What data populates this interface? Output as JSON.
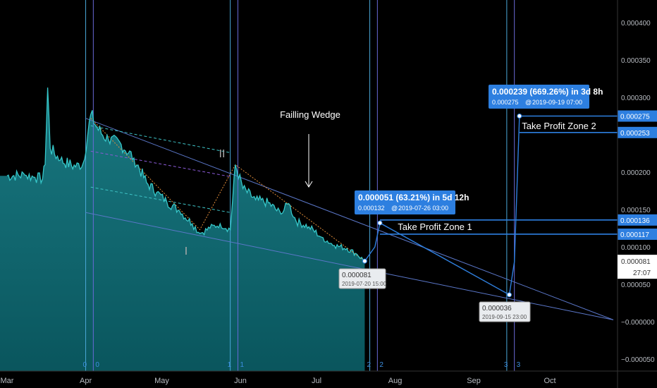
{
  "chart_data": {
    "type": "area",
    "title": "",
    "xlabel": "",
    "ylabel": "",
    "ylim": [
      -5e-05,
      0.0004
    ],
    "colors": {
      "price_line": "#36c7c9",
      "area_top": "#1d8c96",
      "area_bottom": "#0d5a63",
      "accent": "#2d7fe0",
      "fib_line": "#e08c3a",
      "trend": "#5b77c9"
    },
    "x_ticks": [
      {
        "label": "Mar",
        "x": "2019-03-01"
      },
      {
        "label": "Apr",
        "x": "2019-04-01"
      },
      {
        "label": "May",
        "x": "2019-05-01"
      },
      {
        "label": "Jun",
        "x": "2019-06-01"
      },
      {
        "label": "Jul",
        "x": "2019-07-01"
      },
      {
        "label": "Aug",
        "x": "2019-08-01"
      },
      {
        "label": "Sep",
        "x": "2019-09-01"
      },
      {
        "label": "Oct",
        "x": "2019-10-01"
      }
    ],
    "y_ticks": [
      {
        "value": 0.0004,
        "label": "0.000400"
      },
      {
        "value": 0.00035,
        "label": "0.000350"
      },
      {
        "value": 0.0003,
        "label": "0.000300"
      },
      {
        "value": 0.0002,
        "label": "0.000200"
      },
      {
        "value": 0.00015,
        "label": "0.000150"
      },
      {
        "value": 0.0001,
        "label": "0.000100"
      },
      {
        "value": 5e-05,
        "label": "0.000050"
      },
      {
        "value": 0.0,
        "label": "−0.000000"
      },
      {
        "value": -5e-05,
        "label": "−0.000050"
      }
    ],
    "price_series": [
      {
        "x": "2019-03-01",
        "y": 0.000195
      },
      {
        "x": "2019-03-08",
        "y": 0.000196
      },
      {
        "x": "2019-03-12",
        "y": 0.000193
      },
      {
        "x": "2019-03-15",
        "y": 0.000191
      },
      {
        "x": "2019-03-16",
        "y": 0.00021
      },
      {
        "x": "2019-03-17",
        "y": 0.000313
      },
      {
        "x": "2019-03-18",
        "y": 0.000232
      },
      {
        "x": "2019-03-22",
        "y": 0.000216
      },
      {
        "x": "2019-03-28",
        "y": 0.000207
      },
      {
        "x": "2019-03-31",
        "y": 0.000212
      },
      {
        "x": "2019-04-03",
        "y": 0.000277
      },
      {
        "x": "2019-04-06",
        "y": 0.000256
      },
      {
        "x": "2019-04-10",
        "y": 0.000243
      },
      {
        "x": "2019-04-15",
        "y": 0.000237
      },
      {
        "x": "2019-04-20",
        "y": 0.000219
      },
      {
        "x": "2019-04-25",
        "y": 0.000186
      },
      {
        "x": "2019-04-29",
        "y": 0.000173
      },
      {
        "x": "2019-05-03",
        "y": 0.00016
      },
      {
        "x": "2019-05-08",
        "y": 0.000148
      },
      {
        "x": "2019-05-13",
        "y": 0.000131
      },
      {
        "x": "2019-05-16",
        "y": 0.000118
      },
      {
        "x": "2019-05-20",
        "y": 0.000125
      },
      {
        "x": "2019-05-24",
        "y": 0.000131
      },
      {
        "x": "2019-05-28",
        "y": 0.000123
      },
      {
        "x": "2019-05-30",
        "y": 0.00021
      },
      {
        "x": "2019-06-02",
        "y": 0.000178
      },
      {
        "x": "2019-06-07",
        "y": 0.000163
      },
      {
        "x": "2019-06-12",
        "y": 0.000159
      },
      {
        "x": "2019-06-17",
        "y": 0.000144
      },
      {
        "x": "2019-06-20",
        "y": 0.000158
      },
      {
        "x": "2019-06-23",
        "y": 0.000134
      },
      {
        "x": "2019-06-28",
        "y": 0.000127
      },
      {
        "x": "2019-07-03",
        "y": 0.000113
      },
      {
        "x": "2019-07-08",
        "y": 0.000102
      },
      {
        "x": "2019-07-13",
        "y": 9.8e-05
      },
      {
        "x": "2019-07-17",
        "y": 9e-05
      },
      {
        "x": "2019-07-20",
        "y": 8.1e-05
      }
    ],
    "projection_path": [
      {
        "x": "2019-07-20",
        "y": 8.1e-05
      },
      {
        "x": "2019-07-24",
        "y": 0.0001
      },
      {
        "x": "2019-07-26",
        "y": 0.000132
      },
      {
        "x": "2019-09-15",
        "y": 3.6e-05
      },
      {
        "x": "2019-09-17",
        "y": 8e-05
      },
      {
        "x": "2019-09-19",
        "y": 0.000275
      }
    ],
    "wedge_upper": [
      {
        "x": "2019-04-01",
        "y": 0.000272
      },
      {
        "x": "2019-10-26",
        "y": 2.5e-06
      }
    ],
    "wedge_lower": [
      {
        "x": "2019-04-01",
        "y": 0.000146
      },
      {
        "x": "2019-10-26",
        "y": 2.5e-06
      }
    ],
    "fib_lines": [
      [
        {
          "x": "2019-04-03",
          "y": 0.000272
        },
        {
          "x": "2019-05-16",
          "y": 0.000123
        },
        {
          "x": "2019-05-30",
          "y": 0.00021
        },
        {
          "x": "2019-07-20",
          "y": 8.1e-05
        }
      ],
      [
        {
          "x": "2019-07-26",
          "y": 0.000132
        },
        {
          "x": "2019-09-15",
          "y": 3.6e-05
        }
      ]
    ],
    "channel_lines": [
      {
        "p": [
          {
            "x": "2019-04-03",
            "y": 0.000262
          },
          {
            "x": "2019-05-28",
            "y": 0.000226
          }
        ],
        "dashed": true
      },
      {
        "p": [
          {
            "x": "2019-04-03",
            "y": 0.000228
          },
          {
            "x": "2019-05-28",
            "y": 0.000194
          }
        ],
        "dashed": true
      },
      {
        "p": [
          {
            "x": "2019-04-03",
            "y": 0.00018
          },
          {
            "x": "2019-05-28",
            "y": 0.000146
          }
        ],
        "dashed": true
      }
    ],
    "vertical_lines": [
      {
        "x": "2019-04-01",
        "label": "0"
      },
      {
        "x": "2019-04-04",
        "label": "0"
      },
      {
        "x": "2019-05-28",
        "label": "1"
      },
      {
        "x": "2019-05-31",
        "label": "1"
      },
      {
        "x": "2019-07-22",
        "label": "2"
      },
      {
        "x": "2019-07-25",
        "label": "2"
      },
      {
        "x": "2019-09-14",
        "label": "3"
      },
      {
        "x": "2019-09-17",
        "label": "3"
      }
    ],
    "annotations": {
      "wedge_label": "Failling Wedge",
      "roman_I": "I",
      "roman_II": "II",
      "low_label": "0.000081",
      "low_date": "2019-07-20 15:00",
      "low2_label": "0.000036",
      "low2_date": "2019-09-15 23:00",
      "tp1_title": "0.000051 (63.21%) in 5d 12h",
      "tp1_sub": "0.000132",
      "tp1_date": "2019-07-26  03:00",
      "tp2_title": "0.000239 (669.26%) in 3d 8h",
      "tp2_sub": "0.000275",
      "tp2_date": "2019-09-19  07:00",
      "tp1_zone": "Take Profit Zone 1",
      "tp2_zone": "Take Profit Zone 2",
      "at_symbol": "@"
    },
    "price_tags": [
      {
        "value": 0.000275,
        "label": "0.000275"
      },
      {
        "value": 0.000253,
        "label": "0.000253"
      },
      {
        "value": 0.000136,
        "label": "0.000136"
      },
      {
        "value": 0.000117,
        "label": "0.000117"
      }
    ],
    "current_price": {
      "value": 8.1e-05,
      "label": "0.000081",
      "countdown": "27:07"
    }
  }
}
